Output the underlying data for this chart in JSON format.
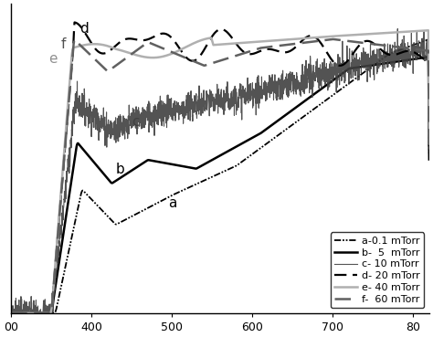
{
  "title": "",
  "xlabel": "",
  "ylabel": "",
  "xmin": 300,
  "xmax": 820,
  "ymin": 0,
  "ymax": 1.05,
  "legend_entries": [
    "a-0.1 mTorr",
    "b-  5  mTorr",
    "c- 10 mTorr",
    "d- 20 mTorr",
    "e- 40 mTorr",
    "f-  60 mTorr"
  ],
  "background_color": "#ffffff"
}
